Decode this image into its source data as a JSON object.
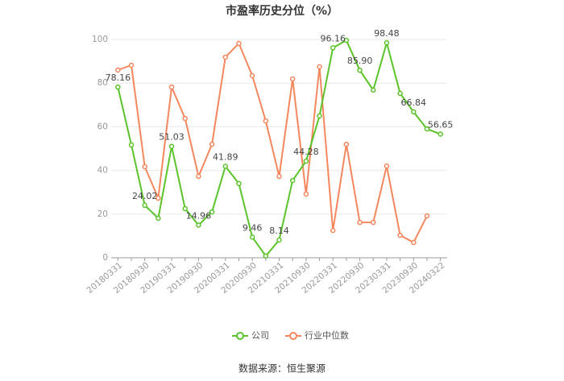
{
  "chart_data": {
    "type": "line",
    "title": "市盈率历史分位（%）",
    "categories": [
      "20180331",
      null,
      "20180930",
      null,
      "20190331",
      null,
      "20190930",
      null,
      "20200331",
      null,
      "20200930",
      null,
      "20210331",
      null,
      "20210930",
      null,
      "20220331",
      null,
      "20220930",
      null,
      "20230331",
      null,
      "20230930",
      null,
      "20240322"
    ],
    "series": [
      {
        "name": "公司",
        "color": "#5bc42b",
        "values": [
          78.16,
          51.7,
          24.02,
          18.1,
          51.03,
          22.5,
          14.96,
          21,
          41.89,
          34,
          9.46,
          0.8,
          8.14,
          35.4,
          44.28,
          65,
          96.16,
          99.6,
          85.9,
          76.8,
          98.48,
          75.3,
          66.84,
          59,
          56.65
        ],
        "value_labels": [
          "78.16",
          null,
          "24.02",
          null,
          "51.03",
          null,
          "14.96",
          null,
          "41.89",
          null,
          "9.46",
          null,
          "8.14",
          null,
          "44.28",
          null,
          "96.16",
          null,
          "85.90",
          null,
          "98.48",
          null,
          "66.84",
          null,
          "56.65"
        ]
      },
      {
        "name": "行业中位数",
        "color": "#f5875e",
        "values": [
          86,
          88.2,
          41.7,
          27.3,
          78.2,
          63.8,
          37.3,
          52,
          91.9,
          98.2,
          83.4,
          62.7,
          37.3,
          81.9,
          29.2,
          87.5,
          12.5,
          52,
          16.2,
          16.2,
          42,
          10.3,
          7,
          19.2,
          null
        ]
      }
    ],
    "ylim": [
      0,
      100
    ],
    "yticks": [
      0,
      20,
      40,
      60,
      80,
      100
    ],
    "grid": true,
    "source": "数据来源：恒生聚源"
  }
}
